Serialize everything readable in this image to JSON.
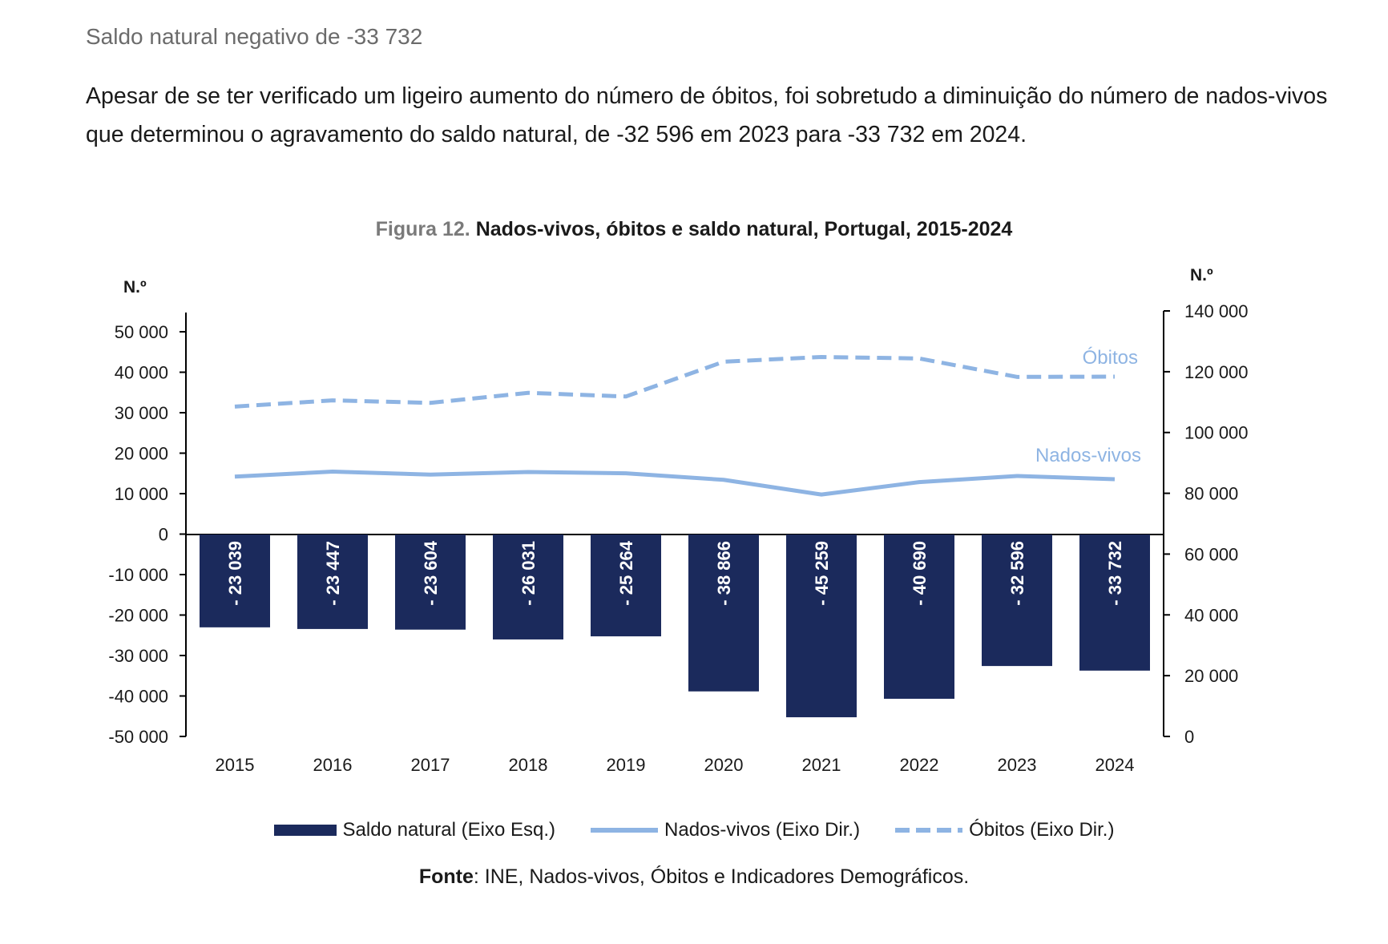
{
  "section_title": "Saldo natural negativo de -33 732",
  "intro_text": "Apesar de se ter verificado um ligeiro aumento do número de óbitos, foi sobretudo a diminuição do número de nados-vivos que determinou o agravamento do saldo natural, de -32 596 em 2023 para -33 732 em 2024.",
  "figure": {
    "number": "Figura 12.",
    "title": "Nados-vivos, óbitos e saldo natural, Portugal, 2015-2024"
  },
  "source": {
    "label": "Fonte",
    "text": ": INE, Nados-vivos, Óbitos e Indicadores Demográficos."
  },
  "chart_data": {
    "type": "bar",
    "title": "Nados-vivos, óbitos e saldo natural, Portugal, 2015-2024",
    "categories": [
      "2015",
      "2016",
      "2017",
      "2018",
      "2019",
      "2020",
      "2021",
      "2022",
      "2023",
      "2024"
    ],
    "left_axis": {
      "title": "N.º",
      "min": -50000,
      "max": 50000,
      "step": 10000,
      "ticks": [
        "-50 000",
        "-40 000",
        "-30 000",
        "-20 000",
        "-10 000",
        "0",
        "10 000",
        "20 000",
        "30 000",
        "40 000",
        "50 000"
      ]
    },
    "right_axis": {
      "title": "N.º",
      "min": 0,
      "max": 140000,
      "step": 20000,
      "ticks": [
        "0",
        "20 000",
        "40 000",
        "60 000",
        "80 000",
        "100 000",
        "120 000",
        "140 000"
      ]
    },
    "series": [
      {
        "name": "Saldo natural (Eixo Esq.)",
        "type": "bar",
        "axis": "left",
        "color": "#1b2a5c",
        "values": [
          -23039,
          -23447,
          -23604,
          -26031,
          -25264,
          -38866,
          -45259,
          -40690,
          -32596,
          -33732
        ],
        "labels": [
          "- 23 039",
          "- 23 447",
          "- 23 604",
          "- 26 031",
          "- 25 264",
          "- 38 866",
          "- 45 259",
          "- 40 690",
          "- 32 596",
          "- 33 732"
        ]
      },
      {
        "name": "Nados-vivos (Eixo Dir.)",
        "type": "line",
        "axis": "right",
        "color": "#8eb4e3",
        "style": "solid",
        "inline_label": "Nados-vivos",
        "values": [
          85500,
          87126,
          86154,
          87020,
          86579,
          84426,
          79582,
          83671,
          85699,
          84642
        ]
      },
      {
        "name": "Óbitos (Eixo Dir.)",
        "type": "line",
        "axis": "right",
        "color": "#8eb4e3",
        "style": "dashed",
        "inline_label": "Óbitos",
        "values": [
          108539,
          110573,
          109758,
          113051,
          111843,
          123292,
          124841,
          124361,
          118295,
          118374
        ]
      }
    ],
    "grid": false,
    "legend_position": "bottom"
  }
}
